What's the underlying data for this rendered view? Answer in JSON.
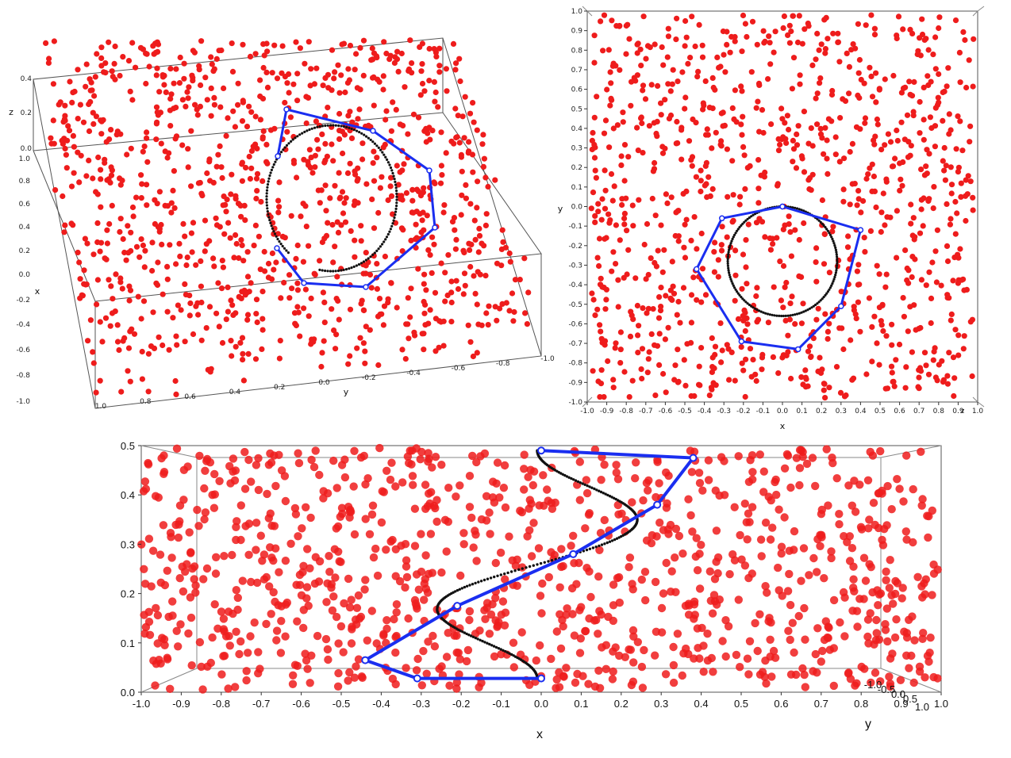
{
  "colors": {
    "points": "#ee1c1c",
    "polygon": "#1a2ef0",
    "curve": "#111111",
    "frame": "#555555"
  },
  "chart_data": [
    {
      "type": "scatter",
      "panel": "3d-oblique",
      "x_axis": {
        "label": "x",
        "ticks": [
          "1.0",
          "0.8",
          "0.6",
          "0.4",
          "0.2",
          "0.0",
          "-0.2",
          "-0.4",
          "-0.6",
          "-0.8",
          "-1.0"
        ]
      },
      "y_axis": {
        "label": "y",
        "ticks": [
          "1.0",
          "0.8",
          "0.6",
          "0.4",
          "0.2",
          "0.0",
          "-0.2",
          "-0.4",
          "-0.6",
          "-0.8",
          "-1.0"
        ]
      },
      "z_axis": {
        "label": "z",
        "ticks": [
          "0.4",
          "0.2",
          "0.0"
        ]
      },
      "point_count": 1100
    },
    {
      "type": "scatter",
      "panel": "top-view",
      "x_axis": {
        "label": "x",
        "ticks": [
          "-1.0",
          "-0.9",
          "-0.8",
          "-0.7",
          "-0.6",
          "-0.5",
          "-0.4",
          "-0.3",
          "-0.2",
          "-0.1",
          "0.0",
          "0.1",
          "0.2",
          "0.3",
          "0.4",
          "0.5",
          "0.6",
          "0.7",
          "0.8",
          "0.9",
          "1.0"
        ],
        "last_tick_overlap": "z"
      },
      "y_axis": {
        "label": "y",
        "ticks": [
          "1.0",
          "0.9",
          "0.8",
          "0.7",
          "0.6",
          "0.5",
          "0.4",
          "0.3",
          "0.2",
          "0.1",
          "0.0",
          "-0.1",
          "-0.2",
          "-0.3",
          "-0.4",
          "-0.5",
          "-0.6",
          "-0.7",
          "-0.8",
          "-0.9",
          "-1.0"
        ]
      },
      "circle": {
        "center": [
          0.0,
          -0.28
        ],
        "radius": 0.28
      },
      "polygon": [
        [
          0.0,
          0.0
        ],
        [
          0.4,
          -0.12
        ],
        [
          0.3,
          -0.51
        ],
        [
          0.08,
          -0.73
        ],
        [
          -0.21,
          -0.69
        ],
        [
          -0.44,
          -0.32
        ],
        [
          -0.31,
          -0.06
        ],
        [
          0.0,
          0.0
        ]
      ],
      "point_count": 1000
    },
    {
      "type": "scatter",
      "panel": "side-view",
      "x_axis": {
        "label": "x",
        "ticks": [
          "-1.0",
          "-0.9",
          "-0.8",
          "-0.7",
          "-0.6",
          "-0.5",
          "-0.4",
          "-0.3",
          "-0.2",
          "-0.1",
          "0.0",
          "0.1",
          "0.2",
          "0.3",
          "0.4",
          "0.5",
          "0.6",
          "0.7",
          "0.8",
          "0.9",
          "1.0"
        ]
      },
      "y_axis": {
        "label": "y",
        "ticks": [
          "-1.0",
          "-0.5",
          "0.0",
          "0.5",
          "1.0"
        ]
      },
      "z_axis": {
        "ticks": [
          "0.0",
          "0.1",
          "0.2",
          "0.3",
          "0.4",
          "0.5"
        ]
      },
      "polygon": [
        [
          0.0,
          0.49
        ],
        [
          0.38,
          0.475
        ],
        [
          0.29,
          0.38
        ],
        [
          0.08,
          0.28
        ],
        [
          -0.21,
          0.175
        ],
        [
          -0.44,
          0.065
        ],
        [
          -0.31,
          0.028
        ],
        [
          0.0,
          0.028
        ]
      ],
      "curve": {
        "from": [
          0.0,
          0.49
        ],
        "to": [
          0.0,
          0.028
        ],
        "x_min": -0.26,
        "x_max": 0.24
      },
      "point_count": 1050
    }
  ]
}
